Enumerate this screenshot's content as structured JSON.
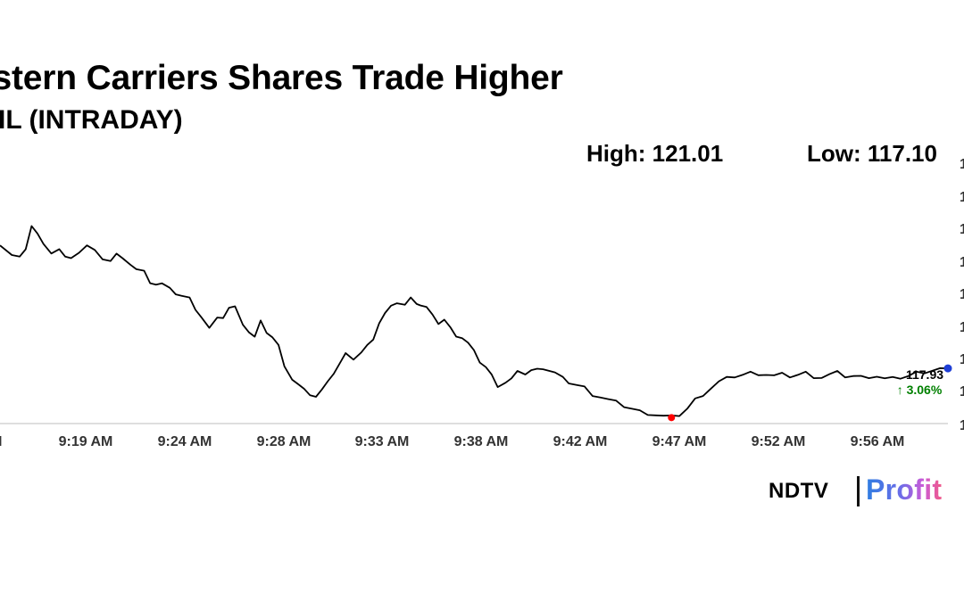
{
  "header": {
    "title": "estern Carriers Shares Trade Higher",
    "subtitle": "IL (INTRADAY)",
    "high_label": "High: 121.01",
    "low_label": "Low: 117.10"
  },
  "logo": {
    "ndtv": "NDTV",
    "profit": "Profit"
  },
  "colors": {
    "line": "#000000",
    "low_marker": "#ff0000",
    "last_marker": "#1f3fd6",
    "change_up": "#008000"
  },
  "chart_data": {
    "type": "line",
    "title": "",
    "xlabel": "",
    "ylabel": "",
    "x_tick_labels": [
      "AM",
      "9:19 AM",
      "9:24 AM",
      "9:28 AM",
      "9:33 AM",
      "9:38 AM",
      "9:42 AM",
      "9:47 AM",
      "9:52 AM",
      "9:56 AM"
    ],
    "y_tick_labels": [
      "1",
      "1",
      "1",
      "1",
      "1",
      "1",
      "1",
      "1",
      "1"
    ],
    "x_range_minutes": [
      0,
      48
    ],
    "ylim": [
      117.0,
      121.4
    ],
    "grid": false,
    "last_value_label": "117.93",
    "change_label": "↑ 3.06%",
    "series": [
      {
        "x": [
          0.0,
          0.6,
          1.0,
          1.3,
          1.6,
          1.9,
          2.2,
          2.6,
          3.0,
          3.3,
          3.6,
          4.0,
          4.4,
          4.8,
          5.2,
          5.6,
          5.9,
          6.2,
          6.6,
          6.9,
          7.3,
          7.6,
          7.9,
          8.2,
          8.6,
          8.9,
          9.2,
          9.6,
          9.9,
          10.2,
          10.6,
          11.0,
          11.3,
          11.6,
          11.9,
          12.3,
          12.6,
          12.9,
          13.2,
          13.5,
          13.8,
          14.1,
          14.4,
          14.8,
          15.1,
          15.4,
          15.7,
          16.0,
          16.3,
          16.6,
          16.9,
          17.2,
          17.5,
          17.9,
          18.3,
          18.6,
          18.9,
          19.2,
          19.5,
          19.8,
          20.1,
          20.5,
          20.8,
          21.1,
          21.3,
          21.6,
          21.9,
          22.2,
          22.5,
          22.8,
          23.1,
          23.4,
          23.7,
          24.0,
          24.3,
          24.6,
          24.9,
          25.2,
          25.6,
          25.9,
          26.2,
          26.6,
          26.9,
          27.2,
          27.5,
          27.8,
          28.1,
          28.5,
          28.8,
          29.2,
          29.6,
          30.0,
          30.4,
          30.8,
          31.2,
          31.6,
          32.0,
          32.4,
          32.8,
          33.2,
          33.6,
          34.0,
          34.4,
          34.8,
          35.2,
          35.6,
          36.0,
          36.4,
          36.8,
          37.2,
          37.6,
          38.0,
          38.4,
          38.8,
          39.2,
          39.6,
          40.0,
          40.4,
          40.8,
          41.2,
          41.6,
          42.0,
          42.4,
          42.8,
          43.2,
          43.6,
          44.0,
          44.4,
          44.8,
          45.2,
          45.6,
          46.0,
          46.4,
          46.8,
          47.2,
          47.6,
          48.0
        ],
        "values": [
          120.0,
          119.85,
          119.8,
          119.9,
          120.35,
          120.2,
          120.0,
          119.9,
          119.95,
          119.8,
          119.75,
          119.9,
          120.0,
          119.9,
          119.8,
          119.75,
          119.85,
          119.75,
          119.7,
          119.6,
          119.55,
          119.4,
          119.35,
          119.35,
          119.25,
          119.2,
          119.15,
          119.1,
          118.95,
          118.8,
          118.6,
          118.75,
          118.8,
          118.95,
          118.95,
          118.7,
          118.55,
          118.45,
          118.7,
          118.55,
          118.45,
          118.3,
          118.0,
          117.75,
          117.65,
          117.55,
          117.5,
          117.45,
          117.55,
          117.75,
          117.85,
          118.0,
          118.15,
          118.1,
          118.2,
          118.3,
          118.45,
          118.7,
          118.85,
          118.95,
          119.05,
          119.0,
          119.1,
          119.05,
          119.0,
          118.95,
          118.8,
          118.7,
          118.75,
          118.6,
          118.5,
          118.45,
          118.35,
          118.2,
          118.05,
          117.95,
          117.8,
          117.65,
          117.7,
          117.75,
          117.85,
          117.85,
          117.9,
          117.9,
          117.95,
          117.9,
          117.85,
          117.75,
          117.7,
          117.65,
          117.6,
          117.5,
          117.45,
          117.4,
          117.35,
          117.3,
          117.25,
          117.2,
          117.18,
          117.15,
          117.12,
          117.1,
          117.15,
          117.25,
          117.4,
          117.5,
          117.6,
          117.7,
          117.75,
          117.8,
          117.82,
          117.85,
          117.85,
          117.83,
          117.8,
          117.82,
          117.8,
          117.82,
          117.85,
          117.8,
          117.78,
          117.82,
          117.85,
          117.8,
          117.8,
          117.78,
          117.8,
          117.8,
          117.75,
          117.75,
          117.78,
          117.8,
          117.85,
          117.88,
          117.9,
          117.92,
          117.93
        ]
      }
    ]
  }
}
